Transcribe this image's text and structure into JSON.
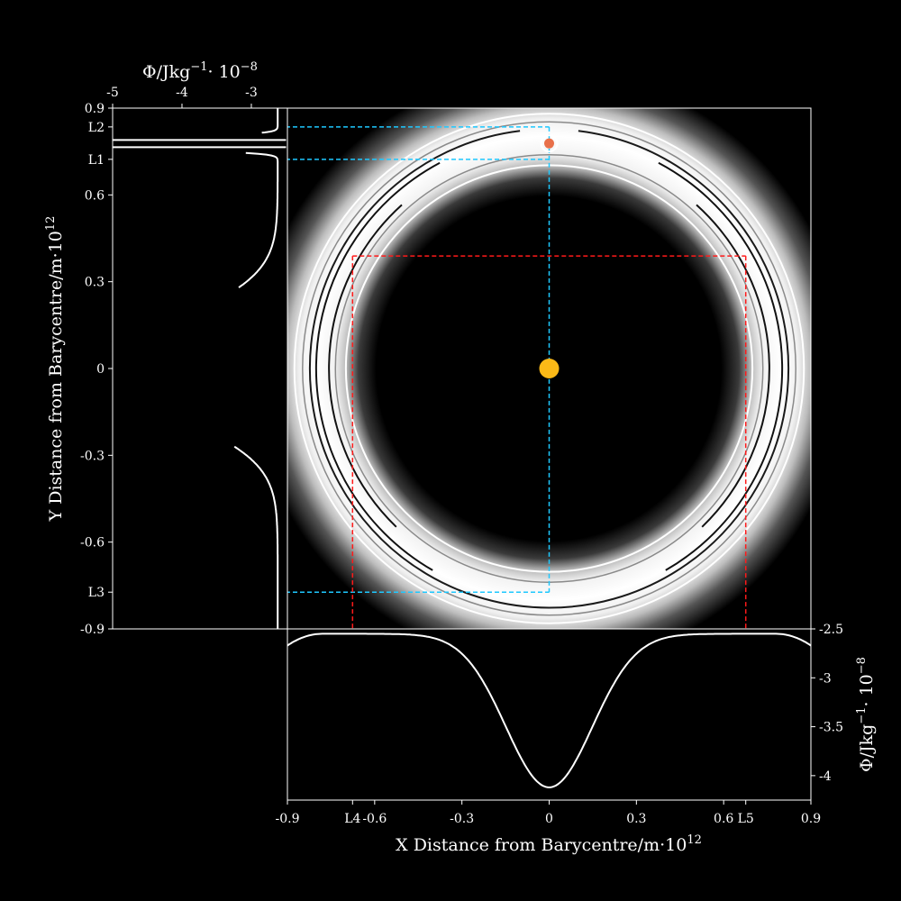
{
  "chart_data": [
    {
      "type": "contour",
      "panel": "main",
      "xlabel": "X Distance from Barycentre/m·10",
      "xlabel_exp": "12",
      "ylabel": "Y Distance from Barycentre/m·10",
      "ylabel_exp": "12",
      "xlim": [
        -0.9,
        0.9
      ],
      "ylim": [
        -0.9,
        0.9
      ],
      "x_ticks": [
        {
          "v": -0.9,
          "label": "-0.9"
        },
        {
          "v": -0.676,
          "label": "L4"
        },
        {
          "v": -0.6,
          "label": "-0.6"
        },
        {
          "v": -0.3,
          "label": "-0.3"
        },
        {
          "v": 0,
          "label": "0"
        },
        {
          "v": 0.3,
          "label": "0.3"
        },
        {
          "v": 0.6,
          "label": "0.6"
        },
        {
          "v": 0.676,
          "label": "L5"
        },
        {
          "v": 0.9,
          "label": "0.9"
        }
      ],
      "y_ticks": [
        {
          "v": 0.9,
          "label": "0.9"
        },
        {
          "v": 0.835,
          "label": "L2"
        },
        {
          "v": 0.723,
          "label": "L1"
        },
        {
          "v": 0.6,
          "label": "0.6"
        },
        {
          "v": 0.3,
          "label": "0.3"
        },
        {
          "v": 0,
          "label": "0"
        },
        {
          "v": -0.3,
          "label": "-0.3"
        },
        {
          "v": -0.6,
          "label": "-0.6"
        },
        {
          "v": -0.773,
          "label": "L3"
        },
        {
          "v": -0.9,
          "label": "-0.9"
        }
      ],
      "bodies": [
        {
          "name": "primary",
          "x": 0,
          "y": 0,
          "color": "#fbb917"
        },
        {
          "name": "secondary",
          "x": 0,
          "y": 0.778,
          "color": "#e8704a"
        }
      ],
      "lagrange_points": [
        {
          "label": "L1",
          "x": 0,
          "y": 0.723
        },
        {
          "label": "L2",
          "x": 0,
          "y": 0.835
        },
        {
          "label": "L3",
          "x": 0,
          "y": -0.773
        },
        {
          "label": "L4",
          "x": -0.676,
          "y": 0.389
        },
        {
          "label": "L5",
          "x": 0.676,
          "y": 0.389
        }
      ],
      "guide_colors": {
        "collinear": "#1ec8ff",
        "triangular": "#ff1a1a"
      }
    },
    {
      "type": "line",
      "panel": "left",
      "xlabel": "Φ/Jkg",
      "xlabel_sup": "−1",
      "xlabel_tail": "· 10",
      "xlabel_exp": "−8",
      "xlim": [
        -5,
        -2.48
      ],
      "x_ticks": [
        {
          "v": -5,
          "label": "-5"
        },
        {
          "v": -4,
          "label": "-4"
        },
        {
          "v": -3,
          "label": "-3"
        }
      ],
      "ylim": [
        -0.9,
        0.9
      ]
    },
    {
      "type": "line",
      "panel": "bottom",
      "ylabel": "Φ/Jkg",
      "ylabel_sup": "−1",
      "ylabel_tail": "· 10",
      "ylabel_exp": "−8",
      "ylim": [
        -4.25,
        -2.5
      ],
      "y_ticks": [
        {
          "v": -2.5,
          "label": "-2.5"
        },
        {
          "v": -3,
          "label": "-3"
        },
        {
          "v": -3.5,
          "label": "-3.5"
        },
        {
          "v": -4,
          "label": "-4"
        }
      ],
      "xlim": [
        -0.9,
        0.9
      ]
    }
  ]
}
